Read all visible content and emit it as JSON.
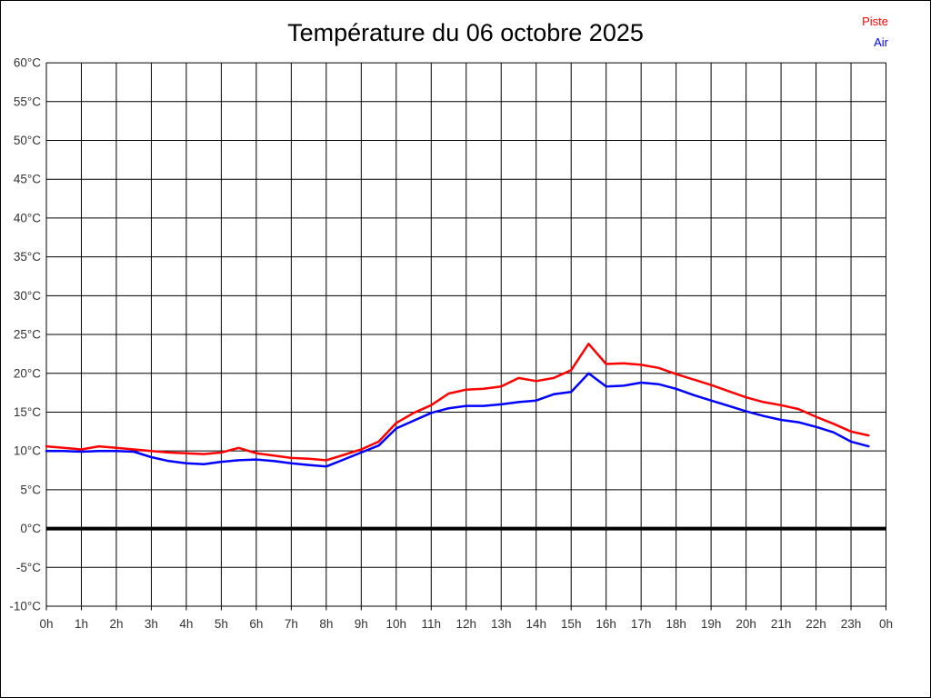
{
  "header": {
    "title": "Température du 06 octobre 2025"
  },
  "legend": {
    "items": [
      {
        "label": "Piste",
        "color": "#ff0000"
      },
      {
        "label": "Air",
        "color": "#0000ff"
      }
    ]
  },
  "chart_data": {
    "type": "line",
    "title": "Température du 06 octobre 2025",
    "xlabel": "",
    "ylabel": "",
    "x_unit": "hours",
    "y_unit": "°C",
    "xlim": [
      0,
      24
    ],
    "ylim": [
      -10,
      60
    ],
    "grid": "on",
    "grid_color": "#000000",
    "legend_position": "top-right",
    "zero_line": {
      "value": 0,
      "style": "thick-black"
    },
    "x": [
      0,
      0.5,
      1,
      1.5,
      2,
      2.5,
      3,
      3.5,
      4,
      4.5,
      5,
      5.5,
      6,
      6.5,
      7,
      7.5,
      8,
      8.5,
      9,
      9.5,
      10,
      10.5,
      11,
      11.5,
      12,
      12.5,
      13,
      13.5,
      14,
      14.5,
      15,
      15.5,
      16,
      16.5,
      17,
      17.5,
      18,
      18.5,
      19,
      19.5,
      20,
      20.5,
      21,
      21.5,
      22,
      22.5,
      23,
      23.5
    ],
    "series": [
      {
        "name": "Piste",
        "color": "#ff0000",
        "values": [
          10.6,
          10.4,
          10.2,
          10.6,
          10.4,
          10.2,
          10.0,
          9.8,
          9.7,
          9.6,
          9.8,
          10.4,
          9.7,
          9.4,
          9.1,
          9.0,
          8.8,
          9.5,
          10.2,
          11.2,
          13.6,
          14.9,
          15.9,
          17.4,
          17.9,
          18.0,
          18.3,
          19.4,
          19.0,
          19.4,
          20.4,
          23.8,
          21.2,
          21.3,
          21.1,
          20.7,
          19.9,
          19.2,
          18.5,
          17.7,
          16.9,
          16.3,
          15.9,
          15.4,
          14.4,
          13.5,
          12.5,
          12.0
        ]
      },
      {
        "name": "Air",
        "color": "#0000ff",
        "values": [
          10.0,
          10.0,
          9.9,
          10.0,
          10.0,
          9.9,
          9.2,
          8.7,
          8.4,
          8.3,
          8.6,
          8.8,
          8.9,
          8.7,
          8.4,
          8.2,
          8.0,
          8.9,
          9.8,
          10.7,
          12.9,
          13.9,
          14.9,
          15.5,
          15.8,
          15.8,
          16.0,
          16.3,
          16.5,
          17.3,
          17.6,
          20.0,
          18.3,
          18.4,
          18.8,
          18.6,
          18.0,
          17.2,
          16.5,
          15.8,
          15.1,
          14.5,
          14.0,
          13.7,
          13.1,
          12.4,
          11.2,
          10.6
        ]
      }
    ],
    "x_tick_values": [
      0,
      1,
      2,
      3,
      4,
      5,
      6,
      7,
      8,
      9,
      10,
      11,
      12,
      13,
      14,
      15,
      16,
      17,
      18,
      19,
      20,
      21,
      22,
      23,
      24
    ],
    "x_tick_labels": [
      "0h",
      "1h",
      "2h",
      "3h",
      "4h",
      "5h",
      "6h",
      "7h",
      "8h",
      "9h",
      "10h",
      "11h",
      "12h",
      "13h",
      "14h",
      "15h",
      "16h",
      "17h",
      "18h",
      "19h",
      "20h",
      "21h",
      "22h",
      "23h",
      "0h"
    ],
    "y_tick_values": [
      60,
      55,
      50,
      45,
      40,
      35,
      30,
      25,
      20,
      15,
      10,
      5,
      0,
      -5,
      -10
    ],
    "y_tick_labels": [
      "60°C",
      "55°C",
      "50°C",
      "45°C",
      "40°C",
      "35°C",
      "30°C",
      "25°C",
      "20°C",
      "15°C",
      "10°C",
      "5°C",
      "0°C",
      "-5°C",
      "-10°C"
    ]
  }
}
